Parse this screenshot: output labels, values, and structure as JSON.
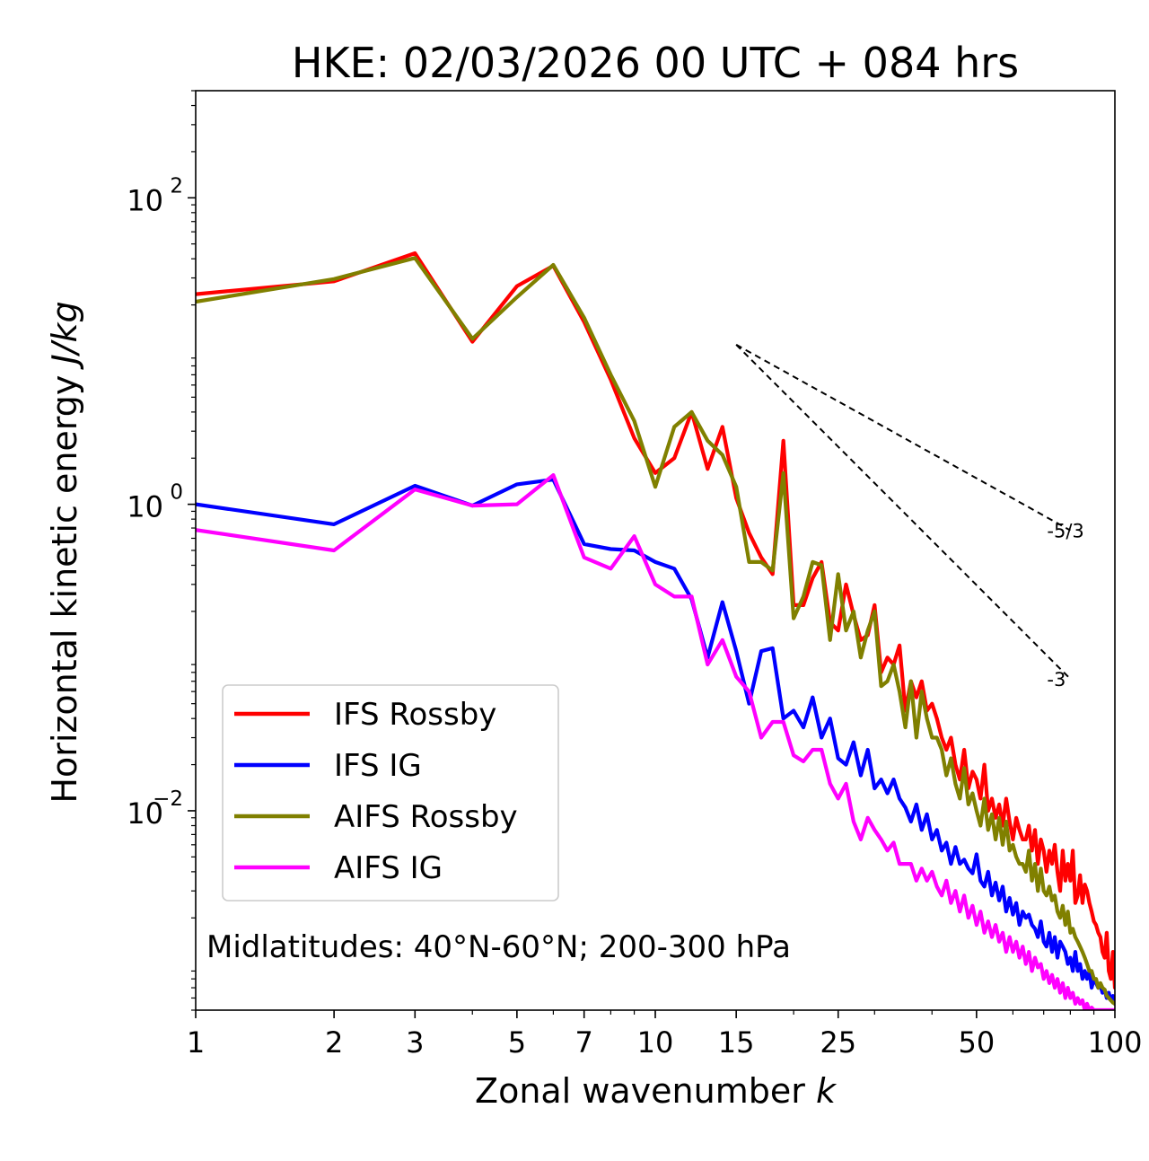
{
  "chart_data": {
    "type": "line",
    "title": "HKE: 02/03/2026 00 UTC + 084 hrs",
    "xlabel_text": "Zonal wavenumber ",
    "xlabel_var": "k",
    "ylabel_text": "Horizontal kinetic energy ",
    "ylabel_unit": "J/kg",
    "xscale": "log",
    "yscale": "log",
    "xlim": [
      1,
      100
    ],
    "ylim": [
      0.0005,
      500
    ],
    "x_ticks": [
      {
        "value": 1,
        "label": "1"
      },
      {
        "value": 2,
        "label": "2"
      },
      {
        "value": 3,
        "label": "3"
      },
      {
        "value": 5,
        "label": "5"
      },
      {
        "value": 7,
        "label": "7"
      },
      {
        "value": 10,
        "label": "10"
      },
      {
        "value": 15,
        "label": "15"
      },
      {
        "value": 25,
        "label": "25"
      },
      {
        "value": 50,
        "label": "50"
      },
      {
        "value": 100,
        "label": "100"
      }
    ],
    "y_ticks": [
      {
        "value": 100,
        "base": "10",
        "exp": "2"
      },
      {
        "value": 1,
        "base": "10",
        "exp": "0"
      },
      {
        "value": 0.01,
        "base": "10",
        "exp": "−2"
      }
    ],
    "annotation": "Midlatitudes: 40°N-60°N; 200-300 hPa",
    "reference_lines": [
      {
        "label": "-5/3",
        "slope": -1.6667,
        "x_start": 15,
        "x_end": 80,
        "y_start": 11.0
      },
      {
        "label": "-3",
        "slope": -3,
        "x_start": 15,
        "x_end": 80,
        "y_start": 11.0
      }
    ],
    "legend_position": "lower-left",
    "series": [
      {
        "name": "IFS Rossby",
        "color": "#ff0000",
        "x": [
          1,
          2,
          3,
          4,
          5,
          6,
          7,
          8,
          9,
          10,
          11,
          12,
          13,
          14,
          15,
          16,
          17,
          18,
          19,
          20,
          21,
          22,
          23,
          24,
          25,
          26,
          27,
          28,
          29,
          30,
          31,
          32,
          33,
          34,
          35,
          36,
          37,
          38,
          39,
          40,
          41,
          42,
          43,
          44,
          45,
          46,
          47,
          48,
          49,
          50,
          51,
          52,
          53,
          54,
          55,
          56,
          57,
          58,
          59,
          60,
          61,
          62,
          63,
          64,
          65,
          66,
          67,
          68,
          69,
          70,
          71,
          72,
          73,
          74,
          75,
          76,
          77,
          78,
          79,
          80,
          81,
          82,
          83,
          84,
          85,
          86,
          87,
          88,
          89,
          90,
          91,
          92,
          93,
          94,
          95,
          96,
          97,
          98,
          99,
          100
        ],
        "values": [
          23.5,
          28.5,
          43.5,
          11.5,
          26.5,
          36.0,
          15.5,
          6.5,
          2.7,
          1.6,
          2.0,
          4.0,
          1.7,
          3.2,
          1.1,
          0.65,
          0.45,
          0.35,
          2.6,
          0.22,
          0.22,
          0.33,
          0.42,
          0.17,
          0.15,
          0.3,
          0.19,
          0.13,
          0.14,
          0.22,
          0.08,
          0.1,
          0.09,
          0.12,
          0.045,
          0.07,
          0.055,
          0.07,
          0.045,
          0.05,
          0.04,
          0.03,
          0.025,
          0.03,
          0.02,
          0.016,
          0.025,
          0.014,
          0.018,
          0.016,
          0.012,
          0.02,
          0.01,
          0.012,
          0.009,
          0.011,
          0.008,
          0.012,
          0.0085,
          0.0065,
          0.009,
          0.0075,
          0.0065,
          0.0065,
          0.008,
          0.0055,
          0.0075,
          0.0045,
          0.0065,
          0.0055,
          0.004,
          0.0055,
          0.0045,
          0.006,
          0.004,
          0.003,
          0.0055,
          0.0035,
          0.0045,
          0.0035,
          0.0055,
          0.0025,
          0.0028,
          0.0038,
          0.0025,
          0.0033,
          0.003,
          0.0025,
          0.0022,
          0.0019,
          0.0018,
          0.0016,
          0.0015,
          0.0012,
          0.0011,
          0.0016,
          0.0009,
          0.0008,
          0.0012,
          0.0007
        ]
      },
      {
        "name": "IFS IG",
        "color": "#0000ff",
        "x": [
          1,
          2,
          3,
          4,
          5,
          6,
          7,
          8,
          9,
          10,
          11,
          12,
          13,
          14,
          15,
          16,
          17,
          18,
          19,
          20,
          21,
          22,
          23,
          24,
          25,
          26,
          27,
          28,
          29,
          30,
          31,
          32,
          33,
          34,
          35,
          36,
          37,
          38,
          39,
          40,
          41,
          42,
          43,
          44,
          45,
          46,
          47,
          48,
          49,
          50,
          51,
          52,
          53,
          54,
          55,
          56,
          57,
          58,
          59,
          60,
          61,
          62,
          63,
          64,
          65,
          66,
          67,
          68,
          69,
          70,
          71,
          72,
          73,
          74,
          75,
          76,
          77,
          78,
          79,
          80,
          81,
          82,
          83,
          84,
          85,
          86,
          87,
          88,
          89,
          90,
          91,
          92,
          93,
          94,
          95,
          96,
          97,
          98,
          99,
          100
        ],
        "values": [
          1.0,
          0.74,
          1.32,
          0.98,
          1.35,
          1.45,
          0.55,
          0.51,
          0.5,
          0.42,
          0.38,
          0.24,
          0.1,
          0.23,
          0.11,
          0.05,
          0.11,
          0.115,
          0.04,
          0.045,
          0.035,
          0.055,
          0.03,
          0.04,
          0.022,
          0.02,
          0.028,
          0.017,
          0.025,
          0.014,
          0.016,
          0.013,
          0.016,
          0.012,
          0.0105,
          0.0085,
          0.011,
          0.0075,
          0.0095,
          0.0065,
          0.0075,
          0.0055,
          0.0062,
          0.0045,
          0.0058,
          0.0045,
          0.0048,
          0.0042,
          0.0039,
          0.0052,
          0.0035,
          0.0032,
          0.004,
          0.0028,
          0.0034,
          0.0026,
          0.0032,
          0.0022,
          0.0027,
          0.0021,
          0.0025,
          0.0018,
          0.0022,
          0.002,
          0.0021,
          0.0018,
          0.0017,
          0.0015,
          0.0019,
          0.0014,
          0.0013,
          0.0016,
          0.0012,
          0.0015,
          0.0011,
          0.0014,
          0.0013,
          0.0012,
          0.001,
          0.0011,
          0.0009,
          0.0012,
          0.0009,
          0.001,
          0.0008,
          0.0009,
          0.0008,
          0.0009,
          0.0007,
          0.0008,
          0.00075,
          0.0007,
          0.00072,
          0.00065,
          0.00068,
          0.0006,
          0.00065,
          0.00058,
          0.00062,
          0.00055
        ]
      },
      {
        "name": "AIFS Rossby",
        "color": "#808000",
        "x": [
          1,
          2,
          3,
          4,
          5,
          6,
          7,
          8,
          9,
          10,
          11,
          12,
          13,
          14,
          15,
          16,
          17,
          18,
          19,
          20,
          21,
          22,
          23,
          24,
          25,
          26,
          27,
          28,
          29,
          30,
          31,
          32,
          33,
          34,
          35,
          36,
          37,
          38,
          39,
          40,
          41,
          42,
          43,
          44,
          45,
          46,
          47,
          48,
          49,
          50,
          51,
          52,
          53,
          54,
          55,
          56,
          57,
          58,
          59,
          60,
          61,
          62,
          63,
          64,
          65,
          66,
          67,
          68,
          69,
          70,
          71,
          72,
          73,
          74,
          75,
          76,
          77,
          78,
          79,
          80,
          81,
          82,
          83,
          84,
          85,
          86,
          87,
          88,
          89,
          90,
          91,
          92,
          93,
          94,
          95,
          96,
          97,
          98,
          99,
          100
        ],
        "values": [
          21.0,
          29.5,
          40.5,
          12.0,
          22.5,
          36.5,
          16.5,
          7.0,
          3.5,
          1.3,
          3.2,
          4.0,
          2.6,
          2.1,
          1.3,
          0.42,
          0.42,
          0.37,
          1.6,
          0.18,
          0.25,
          0.42,
          0.4,
          0.13,
          0.35,
          0.15,
          0.2,
          0.1,
          0.15,
          0.2,
          0.065,
          0.07,
          0.09,
          0.06,
          0.035,
          0.07,
          0.03,
          0.06,
          0.04,
          0.03,
          0.03,
          0.025,
          0.017,
          0.022,
          0.015,
          0.012,
          0.019,
          0.011,
          0.013,
          0.01,
          0.008,
          0.012,
          0.0075,
          0.0095,
          0.0065,
          0.009,
          0.006,
          0.0085,
          0.0055,
          0.006,
          0.005,
          0.0045,
          0.0045,
          0.004,
          0.0055,
          0.0035,
          0.0045,
          0.003,
          0.0042,
          0.003,
          0.0028,
          0.0032,
          0.0026,
          0.0028,
          0.0022,
          0.002,
          0.0024,
          0.0018,
          0.0022,
          0.0016,
          0.0017,
          0.0015,
          0.0014,
          0.0013,
          0.0012,
          0.0011,
          0.001,
          0.0009,
          0.0009,
          0.0008,
          0.0008,
          0.0007,
          0.00075,
          0.0007,
          0.00068,
          0.00062,
          0.0006,
          0.00058,
          0.00056,
          0.00055
        ]
      },
      {
        "name": "AIFS IG",
        "color": "#ff00ff",
        "x": [
          1,
          2,
          3,
          4,
          5,
          6,
          7,
          8,
          9,
          10,
          11,
          12,
          13,
          14,
          15,
          16,
          17,
          18,
          19,
          20,
          21,
          22,
          23,
          24,
          25,
          26,
          27,
          28,
          29,
          30,
          31,
          32,
          33,
          34,
          35,
          36,
          37,
          38,
          39,
          40,
          41,
          42,
          43,
          44,
          45,
          46,
          47,
          48,
          49,
          50,
          51,
          52,
          53,
          54,
          55,
          56,
          57,
          58,
          59,
          60,
          61,
          62,
          63,
          64,
          65,
          66,
          67,
          68,
          69,
          70,
          71,
          72,
          73,
          74,
          75,
          76,
          77,
          78,
          79,
          80,
          81,
          82,
          83,
          84,
          85,
          86,
          87,
          88,
          89,
          90,
          91,
          92,
          93,
          94,
          95,
          96,
          97,
          98,
          99,
          100
        ],
        "values": [
          0.68,
          0.5,
          1.25,
          0.98,
          1.0,
          1.55,
          0.45,
          0.38,
          0.62,
          0.3,
          0.25,
          0.25,
          0.09,
          0.13,
          0.075,
          0.06,
          0.03,
          0.038,
          0.038,
          0.023,
          0.021,
          0.025,
          0.025,
          0.015,
          0.012,
          0.015,
          0.0085,
          0.0065,
          0.009,
          0.0075,
          0.0065,
          0.0055,
          0.0062,
          0.0045,
          0.0045,
          0.0045,
          0.0035,
          0.0042,
          0.0035,
          0.004,
          0.0032,
          0.0028,
          0.0035,
          0.0025,
          0.003,
          0.0022,
          0.0028,
          0.002,
          0.0024,
          0.0018,
          0.0022,
          0.0016,
          0.0019,
          0.0015,
          0.0018,
          0.0014,
          0.0016,
          0.0012,
          0.0015,
          0.0012,
          0.0014,
          0.0011,
          0.0013,
          0.001,
          0.0012,
          0.0009,
          0.0011,
          0.00095,
          0.001,
          0.0008,
          0.0009,
          0.00075,
          0.00085,
          0.0007,
          0.0008,
          0.00065,
          0.00075,
          0.0006,
          0.0007,
          0.0006,
          0.00065,
          0.00055,
          0.0006,
          0.00055,
          0.00058,
          0.0005,
          0.00055,
          0.0005,
          0.00052,
          0.0005,
          0.0005,
          0.0005,
          0.0005,
          0.0005,
          0.0005,
          0.0005,
          0.0005,
          0.0005,
          0.0005,
          0.0005
        ]
      }
    ]
  }
}
